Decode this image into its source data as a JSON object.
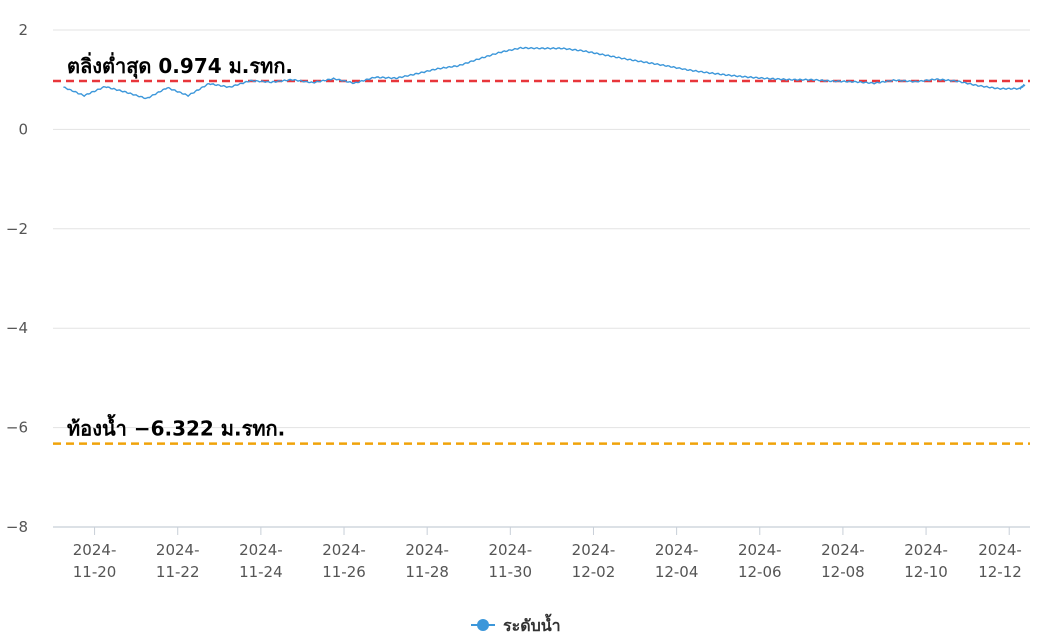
{
  "chart_data": {
    "type": "line",
    "y_axis": {
      "min": -8,
      "max": 2,
      "ticks": [
        2,
        0,
        -2,
        -4,
        -6,
        -8
      ],
      "tick_labels": [
        "2",
        "0",
        "−2",
        "−4",
        "−6",
        "−8"
      ]
    },
    "x_axis": {
      "start": "2024-11-19T00:00",
      "end": "2024-12-12T12:00",
      "tick_labels": [
        {
          "date": "2024-11-20",
          "line1": "2024-",
          "line2": "11-20"
        },
        {
          "date": "2024-11-22",
          "line1": "2024-",
          "line2": "11-22"
        },
        {
          "date": "2024-11-24",
          "line1": "2024-",
          "line2": "11-24"
        },
        {
          "date": "2024-11-26",
          "line1": "2024-",
          "line2": "11-26"
        },
        {
          "date": "2024-11-28",
          "line1": "2024-",
          "line2": "11-28"
        },
        {
          "date": "2024-11-30",
          "line1": "2024-",
          "line2": "11-30"
        },
        {
          "date": "2024-12-02",
          "line1": "2024-",
          "line2": "12-02"
        },
        {
          "date": "2024-12-04",
          "line1": "2024-",
          "line2": "12-04"
        },
        {
          "date": "2024-12-06",
          "line1": "2024-",
          "line2": "12-06"
        },
        {
          "date": "2024-12-08",
          "line1": "2024-",
          "line2": "12-08"
        },
        {
          "date": "2024-12-10",
          "line1": "2024-",
          "line2": "12-10"
        },
        {
          "date": "2024-12-12",
          "line1": "2024-",
          "line2": "12-12"
        }
      ]
    },
    "grid": true,
    "series": [
      {
        "name": "ระดับน้ำ",
        "color": "#3c97da",
        "points": [
          [
            "2024-11-19T06:00",
            0.85
          ],
          [
            "2024-11-19T18:00",
            0.68
          ],
          [
            "2024-11-20T06:00",
            0.86
          ],
          [
            "2024-11-20T18:00",
            0.75
          ],
          [
            "2024-11-21T06:00",
            0.62
          ],
          [
            "2024-11-21T18:00",
            0.84
          ],
          [
            "2024-11-22T06:00",
            0.68
          ],
          [
            "2024-11-22T18:00",
            0.92
          ],
          [
            "2024-11-23T06:00",
            0.85
          ],
          [
            "2024-11-23T18:00",
            0.98
          ],
          [
            "2024-11-24T06:00",
            0.95
          ],
          [
            "2024-11-24T18:00",
            1.0
          ],
          [
            "2024-11-25T06:00",
            0.94
          ],
          [
            "2024-11-25T18:00",
            1.02
          ],
          [
            "2024-11-26T06:00",
            0.93
          ],
          [
            "2024-11-26T18:00",
            1.05
          ],
          [
            "2024-11-27T06:00",
            1.03
          ],
          [
            "2024-11-27T18:00",
            1.12
          ],
          [
            "2024-11-28T06:00",
            1.22
          ],
          [
            "2024-11-28T18:00",
            1.28
          ],
          [
            "2024-11-29T06:00",
            1.42
          ],
          [
            "2024-11-29T18:00",
            1.55
          ],
          [
            "2024-11-30T06:00",
            1.64
          ],
          [
            "2024-11-30T18:00",
            1.63
          ],
          [
            "2024-12-01T06:00",
            1.63
          ],
          [
            "2024-12-01T18:00",
            1.58
          ],
          [
            "2024-12-02T06:00",
            1.5
          ],
          [
            "2024-12-02T18:00",
            1.42
          ],
          [
            "2024-12-03T06:00",
            1.35
          ],
          [
            "2024-12-03T18:00",
            1.28
          ],
          [
            "2024-12-04T06:00",
            1.2
          ],
          [
            "2024-12-04T18:00",
            1.14
          ],
          [
            "2024-12-05T06:00",
            1.09
          ],
          [
            "2024-12-05T18:00",
            1.05
          ],
          [
            "2024-12-06T06:00",
            1.02
          ],
          [
            "2024-12-06T18:00",
            1.0
          ],
          [
            "2024-12-07T06:00",
            1.0
          ],
          [
            "2024-12-07T18:00",
            0.97
          ],
          [
            "2024-12-08T06:00",
            0.96
          ],
          [
            "2024-12-08T18:00",
            0.93
          ],
          [
            "2024-12-09T06:00",
            0.99
          ],
          [
            "2024-12-09T18:00",
            0.96
          ],
          [
            "2024-12-10T06:00",
            1.01
          ],
          [
            "2024-12-10T18:00",
            0.97
          ],
          [
            "2024-12-11T06:00",
            0.88
          ],
          [
            "2024-12-11T18:00",
            0.82
          ],
          [
            "2024-12-12T06:00",
            0.82
          ],
          [
            "2024-12-12T09:00",
            0.9
          ]
        ]
      }
    ],
    "reference_lines": [
      {
        "value": 0.974,
        "label": "ตลิ่งต่ำสุด 0.974 ม.รทก.",
        "color": "#e8363b"
      },
      {
        "value": -6.322,
        "label": "ท้องน้ำ −6.322 ม.รทก.",
        "color": "#f0a30a"
      }
    ],
    "legend": {
      "position": "bottom-center",
      "entries": [
        "ระดับน้ำ"
      ]
    }
  }
}
